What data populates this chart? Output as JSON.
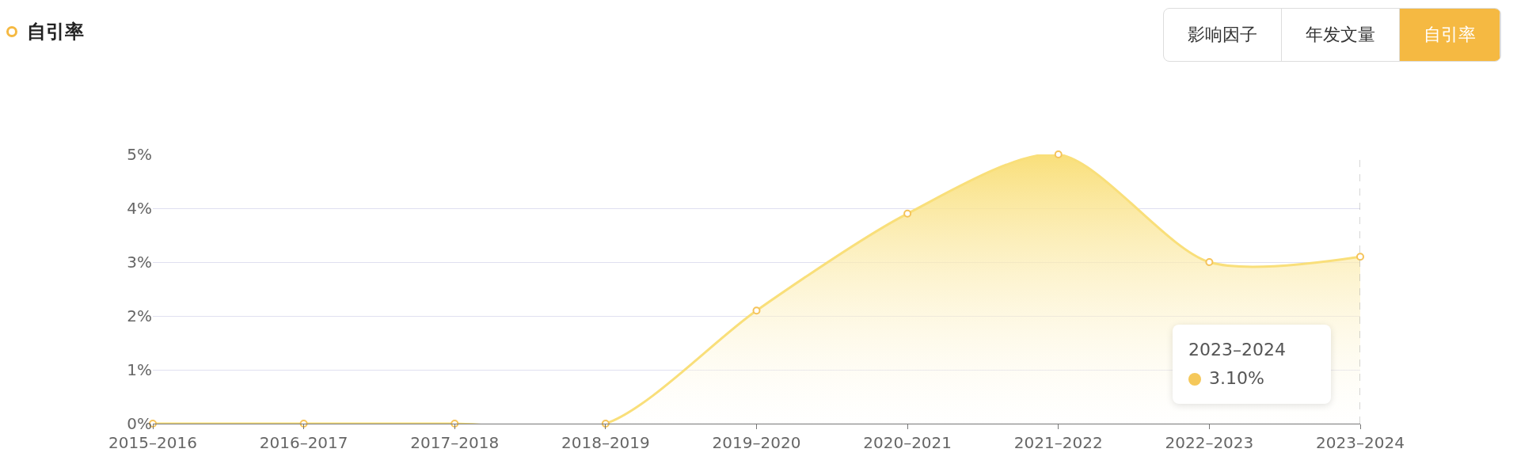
{
  "chart_data": {
    "type": "area",
    "title": "自引率",
    "categories": [
      "2015–2016",
      "2016–2017",
      "2017–2018",
      "2018–2019",
      "2019–2020",
      "2020–2021",
      "2021–2022",
      "2022–2023",
      "2023–2024"
    ],
    "series": [
      {
        "color": "#f9df7a",
        "values": [
          0,
          0,
          0,
          0,
          2.1,
          3.9,
          5.0,
          3.0,
          3.1
        ]
      }
    ],
    "ylim": [
      0,
      5
    ],
    "yticks": [
      {
        "value": 0,
        "label": "0%"
      },
      {
        "value": 1,
        "label": "1%"
      },
      {
        "value": 2,
        "label": "2%"
      },
      {
        "value": 3,
        "label": "3%"
      },
      {
        "value": 4,
        "label": "4%"
      },
      {
        "value": 5,
        "label": "5%"
      }
    ],
    "grid": "y",
    "marker": "circle",
    "line_style": "solid",
    "ref_lines": [
      {
        "axis": "x",
        "value": "2023–2024",
        "color": "#aaaaaa",
        "line_style": "dashed"
      }
    ],
    "annotations": [
      "影响因子",
      "年发文量",
      "自引率",
      "2023–2024",
      "3.10%"
    ]
  }
}
